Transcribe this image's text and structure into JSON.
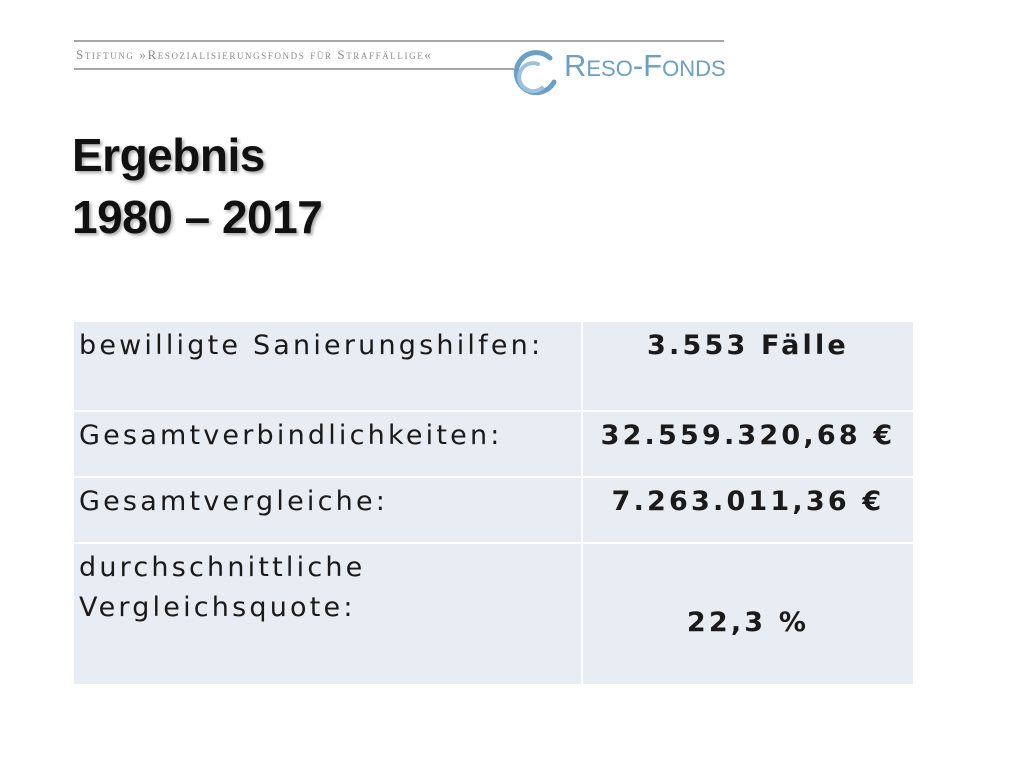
{
  "header": {
    "foundation_name": "Stiftung »Resozialisierungsfonds für Straffällige«",
    "logo_text": "Reso-Fonds",
    "logo_color": "#6aa0c8"
  },
  "title": {
    "line1": "Ergebnis",
    "line2": "1980 – 2017"
  },
  "table": {
    "rows": [
      {
        "label": "bewilligte Sanierungshilfen:",
        "value": "3.553 Fälle"
      },
      {
        "label": "Gesamtverbindlichkeiten:",
        "value": "32.559.320,68 €"
      },
      {
        "label": "Gesamtvergleiche:",
        "value": "7.263.011,36 €"
      },
      {
        "label": "durchschnittliche Vergleichsquote:",
        "value": "22,3 %"
      }
    ]
  }
}
